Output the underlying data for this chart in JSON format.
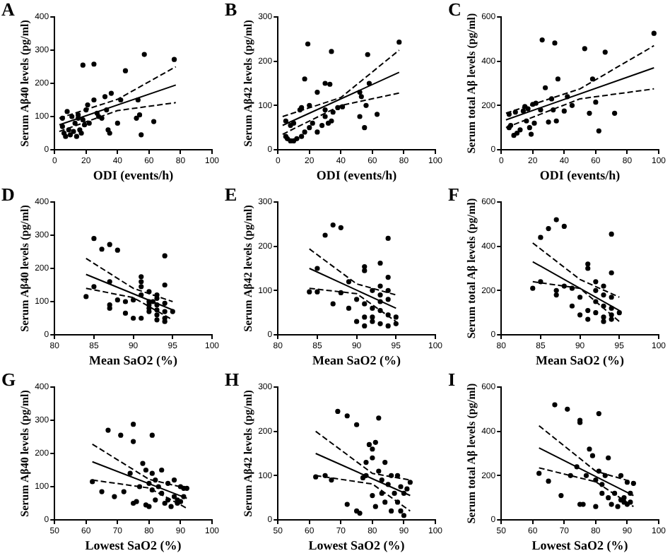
{
  "chart_data": [
    {
      "type": "scatter",
      "title": "A",
      "xlabel": "ODI (events/h)",
      "ylabel": "Serum Aβ40 levels (pg/ml)",
      "xlim": [
        0,
        100
      ],
      "xticks": [
        0,
        20,
        40,
        60,
        80,
        100
      ],
      "ylim": [
        0,
        400
      ],
      "yticks": [
        0,
        100,
        200,
        300,
        400
      ],
      "series": [
        {
          "type": "scatter",
          "marker": "circle",
          "color": "#000000",
          "x": [
            5,
            5,
            6,
            7,
            8,
            9,
            10,
            11,
            12,
            13,
            14,
            15,
            15,
            16,
            17,
            18,
            18,
            19,
            20,
            21,
            22,
            25,
            25,
            27,
            28,
            30,
            32,
            33,
            34,
            35,
            36,
            40,
            42,
            45,
            52,
            53,
            54,
            55,
            57,
            63,
            76
          ],
          "values": [
            95,
            70,
            50,
            40,
            115,
            60,
            45,
            100,
            55,
            80,
            40,
            95,
            105,
            60,
            50,
            255,
            90,
            75,
            120,
            135,
            80,
            258,
            150,
            110,
            100,
            95,
            160,
            120,
            60,
            50,
            170,
            80,
            150,
            238,
            95,
            150,
            105,
            45,
            287,
            85,
            272
          ]
        },
        {
          "type": "line",
          "color": "#000000",
          "line_style": "solid",
          "x": [
            3,
            77
          ],
          "values": [
            75,
            195
          ]
        },
        {
          "type": "line",
          "color": "#000000",
          "line_style": "dashed",
          "x": [
            3,
            40,
            77
          ],
          "values": [
            95,
            152,
            250
          ]
        },
        {
          "type": "line",
          "color": "#000000",
          "line_style": "dashed",
          "x": [
            3,
            40,
            77
          ],
          "values": [
            55,
            118,
            142
          ]
        }
      ]
    },
    {
      "type": "scatter",
      "title": "B",
      "xlabel": "ODI (events/h)",
      "ylabel": "Serum Aβ42 levels (pg/ml)",
      "xlim": [
        0,
        100
      ],
      "xticks": [
        0,
        20,
        40,
        60,
        80,
        100
      ],
      "ylim": [
        0,
        300
      ],
      "yticks": [
        0,
        100,
        200,
        300
      ],
      "series": [
        {
          "type": "scatter",
          "marker": "circle",
          "color": "#000000",
          "x": [
            19,
            34,
            17,
            25,
            30,
            33,
            57,
            77,
            52,
            53,
            58,
            56,
            63,
            55,
            52,
            38,
            41,
            35,
            30,
            32,
            34,
            20,
            15,
            14,
            10,
            8,
            5,
            5,
            6,
            8,
            10,
            12,
            15,
            17,
            20,
            22,
            25,
            28,
            30
          ],
          "values": [
            239,
            222,
            160,
            130,
            150,
            148,
            215,
            243,
            130,
            120,
            150,
            100,
            80,
            50,
            75,
            95,
            97,
            85,
            75,
            60,
            65,
            100,
            95,
            90,
            60,
            55,
            65,
            30,
            25,
            20,
            20,
            25,
            30,
            40,
            50,
            60,
            40,
            55,
            90
          ]
        },
        {
          "type": "line",
          "color": "#000000",
          "line_style": "solid",
          "x": [
            3,
            77
          ],
          "values": [
            55,
            175
          ]
        },
        {
          "type": "line",
          "color": "#000000",
          "line_style": "dashed",
          "x": [
            3,
            40,
            77
          ],
          "values": [
            75,
            118,
            225
          ]
        },
        {
          "type": "line",
          "color": "#000000",
          "line_style": "dashed",
          "x": [
            3,
            40,
            77
          ],
          "values": [
            35,
            100,
            128
          ]
        }
      ]
    },
    {
      "type": "scatter",
      "title": "C",
      "xlabel": "ODI (events/h)",
      "ylabel": "Serum total Aβ levels (pg/ml)",
      "xlim": [
        0,
        100
      ],
      "xticks": [
        0,
        20,
        40,
        60,
        80,
        100
      ],
      "ylim": [
        0,
        600
      ],
      "yticks": [
        0,
        200,
        400,
        600
      ],
      "series": [
        {
          "type": "scatter",
          "marker": "circle",
          "color": "#000000",
          "x": [
            5,
            5,
            6,
            8,
            9,
            10,
            12,
            14,
            15,
            16,
            17,
            18,
            19,
            20,
            21,
            22,
            25,
            26,
            28,
            30,
            32,
            33,
            34,
            35,
            36,
            40,
            42,
            45,
            53,
            56,
            58,
            60,
            62,
            66,
            72,
            97
          ],
          "values": [
            100,
            160,
            110,
            65,
            170,
            75,
            90,
            175,
            195,
            130,
            185,
            100,
            70,
            205,
            120,
            210,
            180,
            496,
            280,
            125,
            230,
            180,
            482,
            130,
            320,
            175,
            240,
            200,
            457,
            165,
            320,
            215,
            85,
            441,
            165,
            526
          ]
        },
        {
          "type": "line",
          "color": "#000000",
          "line_style": "solid",
          "x": [
            3,
            97
          ],
          "values": [
            135,
            370
          ]
        },
        {
          "type": "line",
          "color": "#000000",
          "line_style": "dashed",
          "x": [
            3,
            50,
            97
          ],
          "values": [
            165,
            275,
            470
          ]
        },
        {
          "type": "line",
          "color": "#000000",
          "line_style": "dashed",
          "x": [
            3,
            50,
            97
          ],
          "values": [
            100,
            230,
            275
          ]
        }
      ]
    },
    {
      "type": "scatter",
      "title": "D",
      "xlabel": "Mean SaO2 (%)",
      "ylabel": "Serum Aβ40 levels (pg/ml)",
      "xlim": [
        80,
        100
      ],
      "xticks": [
        80,
        85,
        90,
        95,
        100
      ],
      "ylim": [
        0,
        400
      ],
      "yticks": [
        0,
        100,
        200,
        300,
        400
      ],
      "series": [
        {
          "type": "scatter",
          "marker": "circle",
          "color": "#000000",
          "x": [
            85,
            86,
            87,
            88,
            84,
            85,
            87,
            87,
            87,
            88,
            89,
            89,
            90,
            90,
            91,
            91,
            91,
            91,
            91,
            92,
            92,
            92,
            92,
            93,
            92.5,
            93,
            93,
            93,
            93,
            94,
            94,
            94,
            94,
            94,
            94,
            95,
            93,
            92
          ],
          "values": [
            290,
            258,
            272,
            255,
            115,
            145,
            160,
            90,
            80,
            105,
            65,
            100,
            50,
            105,
            50,
            120,
            160,
            175,
            145,
            100,
            80,
            70,
            130,
            120,
            100,
            90,
            60,
            45,
            110,
            238,
            150,
            95,
            70,
            50,
            40,
            70,
            75,
            90
          ]
        },
        {
          "type": "line",
          "color": "#000000",
          "line_style": "solid",
          "x": [
            84,
            95
          ],
          "values": [
            182,
            75
          ]
        },
        {
          "type": "line",
          "color": "#000000",
          "line_style": "dashed",
          "x": [
            84,
            90,
            95
          ],
          "values": [
            230,
            140,
            100
          ]
        },
        {
          "type": "line",
          "color": "#000000",
          "line_style": "dashed",
          "x": [
            84,
            90,
            95
          ],
          "values": [
            140,
            112,
            45
          ]
        }
      ]
    },
    {
      "type": "scatter",
      "title": "E",
      "xlabel": "Mean SaO2 (%)",
      "ylabel": "Serum Aβ42 levels (pg/ml)",
      "xlim": [
        80,
        100
      ],
      "xticks": [
        80,
        85,
        90,
        95,
        100
      ],
      "ylim": [
        0,
        300
      ],
      "yticks": [
        0,
        100,
        200,
        300
      ],
      "series": [
        {
          "type": "scatter",
          "marker": "circle",
          "color": "#000000",
          "x": [
            84,
            85,
            85,
            86,
            87,
            87,
            88,
            88,
            89,
            89,
            90,
            90,
            91,
            91,
            91,
            91,
            91,
            92,
            92,
            92,
            93,
            93,
            93,
            93,
            93,
            94,
            94,
            94,
            94,
            94,
            94,
            95,
            95,
            92,
            93
          ],
          "values": [
            97,
            150,
            97,
            225,
            248,
            70,
            242,
            95,
            60,
            120,
            80,
            30,
            154,
            145,
            70,
            40,
            20,
            100,
            60,
            30,
            162,
            110,
            90,
            55,
            25,
            218,
            130,
            100,
            80,
            45,
            20,
            40,
            25,
            40,
            75
          ]
        },
        {
          "type": "line",
          "color": "#000000",
          "line_style": "solid",
          "x": [
            84,
            95
          ],
          "values": [
            150,
            60
          ]
        },
        {
          "type": "line",
          "color": "#000000",
          "line_style": "dashed",
          "x": [
            84,
            90,
            95
          ],
          "values": [
            194,
            115,
            90
          ]
        },
        {
          "type": "line",
          "color": "#000000",
          "line_style": "dashed",
          "x": [
            84,
            90,
            95
          ],
          "values": [
            105,
            93,
            30
          ]
        }
      ]
    },
    {
      "type": "scatter",
      "title": "F",
      "xlabel": "Mean SaO2 (%)",
      "ylabel": "Serum total Aβ levels (pg/ml)",
      "xlim": [
        80,
        100
      ],
      "xticks": [
        80,
        85,
        90,
        95,
        100
      ],
      "ylim": [
        0,
        600
      ],
      "yticks": [
        0,
        200,
        400,
        600
      ],
      "series": [
        {
          "type": "scatter",
          "marker": "circle",
          "color": "#000000",
          "x": [
            84,
            85,
            85,
            86,
            87,
            87,
            87,
            88,
            88,
            89,
            89,
            90,
            90,
            91,
            91,
            91,
            91,
            92,
            92,
            92,
            93,
            93,
            93,
            93,
            94,
            94,
            94,
            94,
            94,
            95,
            92,
            93,
            94
          ],
          "values": [
            210,
            440,
            240,
            480,
            520,
            200,
            180,
            490,
            220,
            130,
            210,
            90,
            170,
            320,
            300,
            110,
            70,
            200,
            150,
            100,
            220,
            180,
            130,
            80,
            455,
            280,
            170,
            120,
            70,
            100,
            240,
            60,
            90
          ]
        },
        {
          "type": "line",
          "color": "#000000",
          "line_style": "solid",
          "x": [
            84,
            95
          ],
          "values": [
            330,
            110
          ]
        },
        {
          "type": "line",
          "color": "#000000",
          "line_style": "dashed",
          "x": [
            84,
            90,
            95
          ],
          "values": [
            415,
            250,
            170
          ]
        },
        {
          "type": "line",
          "color": "#000000",
          "line_style": "dashed",
          "x": [
            84,
            90,
            95
          ],
          "values": [
            240,
            210,
            60
          ]
        }
      ]
    },
    {
      "type": "scatter",
      "title": "G",
      "xlabel": "Lowest SaO2 (%)",
      "ylabel": "Serum Aβ40 levels (pg/ml)",
      "xlim": [
        50,
        100
      ],
      "xticks": [
        50,
        60,
        70,
        80,
        90,
        100
      ],
      "ylim": [
        0,
        400
      ],
      "yticks": [
        0,
        100,
        200,
        300,
        400
      ],
      "series": [
        {
          "type": "scatter",
          "marker": "circle",
          "color": "#000000",
          "x": [
            62,
            65,
            67,
            69,
            71,
            72,
            74,
            75,
            75,
            75,
            76,
            77,
            78,
            79,
            79,
            80,
            80,
            81,
            81,
            81,
            82,
            82,
            83,
            84,
            84,
            85,
            86,
            86,
            87,
            88,
            88,
            89,
            89,
            90,
            90,
            91,
            91,
            92
          ],
          "values": [
            115,
            85,
            270,
            70,
            255,
            85,
            140,
            288,
            236,
            50,
            55,
            100,
            170,
            150,
            45,
            40,
            110,
            255,
            140,
            90,
            120,
            60,
            100,
            150,
            80,
            50,
            60,
            110,
            40,
            70,
            120,
            60,
            50,
            55,
            100,
            70,
            95,
            95
          ]
        },
        {
          "type": "line",
          "color": "#000000",
          "line_style": "solid",
          "x": [
            62,
            92
          ],
          "values": [
            175,
            65
          ]
        },
        {
          "type": "line",
          "color": "#000000",
          "line_style": "dashed",
          "x": [
            62,
            80,
            92
          ],
          "values": [
            228,
            122,
            95
          ]
        },
        {
          "type": "line",
          "color": "#000000",
          "line_style": "dashed",
          "x": [
            62,
            80,
            92
          ],
          "values": [
            120,
            96,
            35
          ]
        }
      ]
    },
    {
      "type": "scatter",
      "title": "H",
      "xlabel": "Lowest SaO2 (%)",
      "ylabel": "Serum Aβ42 levels (pg/ml)",
      "xlim": [
        50,
        100
      ],
      "xticks": [
        50,
        60,
        70,
        80,
        90,
        100
      ],
      "ylim": [
        0,
        300
      ],
      "yticks": [
        0,
        100,
        200,
        300
      ],
      "series": [
        {
          "type": "scatter",
          "marker": "circle",
          "color": "#000000",
          "x": [
            62,
            65,
            67,
            69,
            72,
            72,
            75,
            75,
            76,
            77,
            78,
            78,
            79,
            80,
            80,
            80,
            81,
            81,
            82,
            82,
            83,
            83,
            84,
            84,
            85,
            86,
            86,
            87,
            88,
            89,
            89,
            90,
            90,
            91,
            92,
            88
          ],
          "values": [
            97,
            100,
            90,
            245,
            235,
            35,
            215,
            20,
            15,
            95,
            130,
            100,
            170,
            160,
            140,
            55,
            175,
            30,
            230,
            110,
            90,
            60,
            130,
            40,
            80,
            20,
            100,
            60,
            40,
            75,
            20,
            10,
            60,
            70,
            85,
            100
          ]
        },
        {
          "type": "line",
          "color": "#000000",
          "line_style": "solid",
          "x": [
            62,
            92
          ],
          "values": [
            150,
            55
          ]
        },
        {
          "type": "line",
          "color": "#000000",
          "line_style": "dashed",
          "x": [
            62,
            80,
            92
          ],
          "values": [
            200,
            105,
            90
          ]
        },
        {
          "type": "line",
          "color": "#000000",
          "line_style": "dashed",
          "x": [
            62,
            80,
            92
          ],
          "values": [
            100,
            81,
            20
          ]
        }
      ]
    },
    {
      "type": "scatter",
      "title": "I",
      "xlabel": "Lowest SaO2 (%)",
      "ylabel": "Serum total Aβ levels (pg/ml)",
      "xlim": [
        50,
        100
      ],
      "xticks": [
        50,
        60,
        70,
        80,
        90,
        100
      ],
      "ylim": [
        0,
        600
      ],
      "yticks": [
        0,
        200,
        400,
        600
      ],
      "series": [
        {
          "type": "scatter",
          "marker": "circle",
          "color": "#000000",
          "x": [
            62,
            65,
            67,
            69,
            71,
            72,
            74,
            75,
            75,
            75,
            76,
            77,
            78,
            79,
            80,
            80,
            81,
            81,
            82,
            82,
            83,
            84,
            84,
            85,
            86,
            87,
            88,
            88,
            89,
            89,
            90,
            90,
            91,
            92,
            91
          ],
          "values": [
            210,
            175,
            520,
            110,
            500,
            200,
            240,
            450,
            440,
            70,
            70,
            200,
            320,
            290,
            60,
            180,
            480,
            220,
            160,
            120,
            200,
            280,
            100,
            70,
            120,
            60,
            90,
            200,
            100,
            80,
            70,
            170,
            120,
            165,
            80
          ]
        },
        {
          "type": "line",
          "color": "#000000",
          "line_style": "solid",
          "x": [
            62,
            92
          ],
          "values": [
            325,
            110
          ]
        },
        {
          "type": "line",
          "color": "#000000",
          "line_style": "dashed",
          "x": [
            62,
            80,
            92
          ],
          "values": [
            425,
            220,
            170
          ]
        },
        {
          "type": "line",
          "color": "#000000",
          "line_style": "dashed",
          "x": [
            62,
            80,
            92
          ],
          "values": [
            235,
            172,
            60
          ]
        }
      ]
    }
  ]
}
